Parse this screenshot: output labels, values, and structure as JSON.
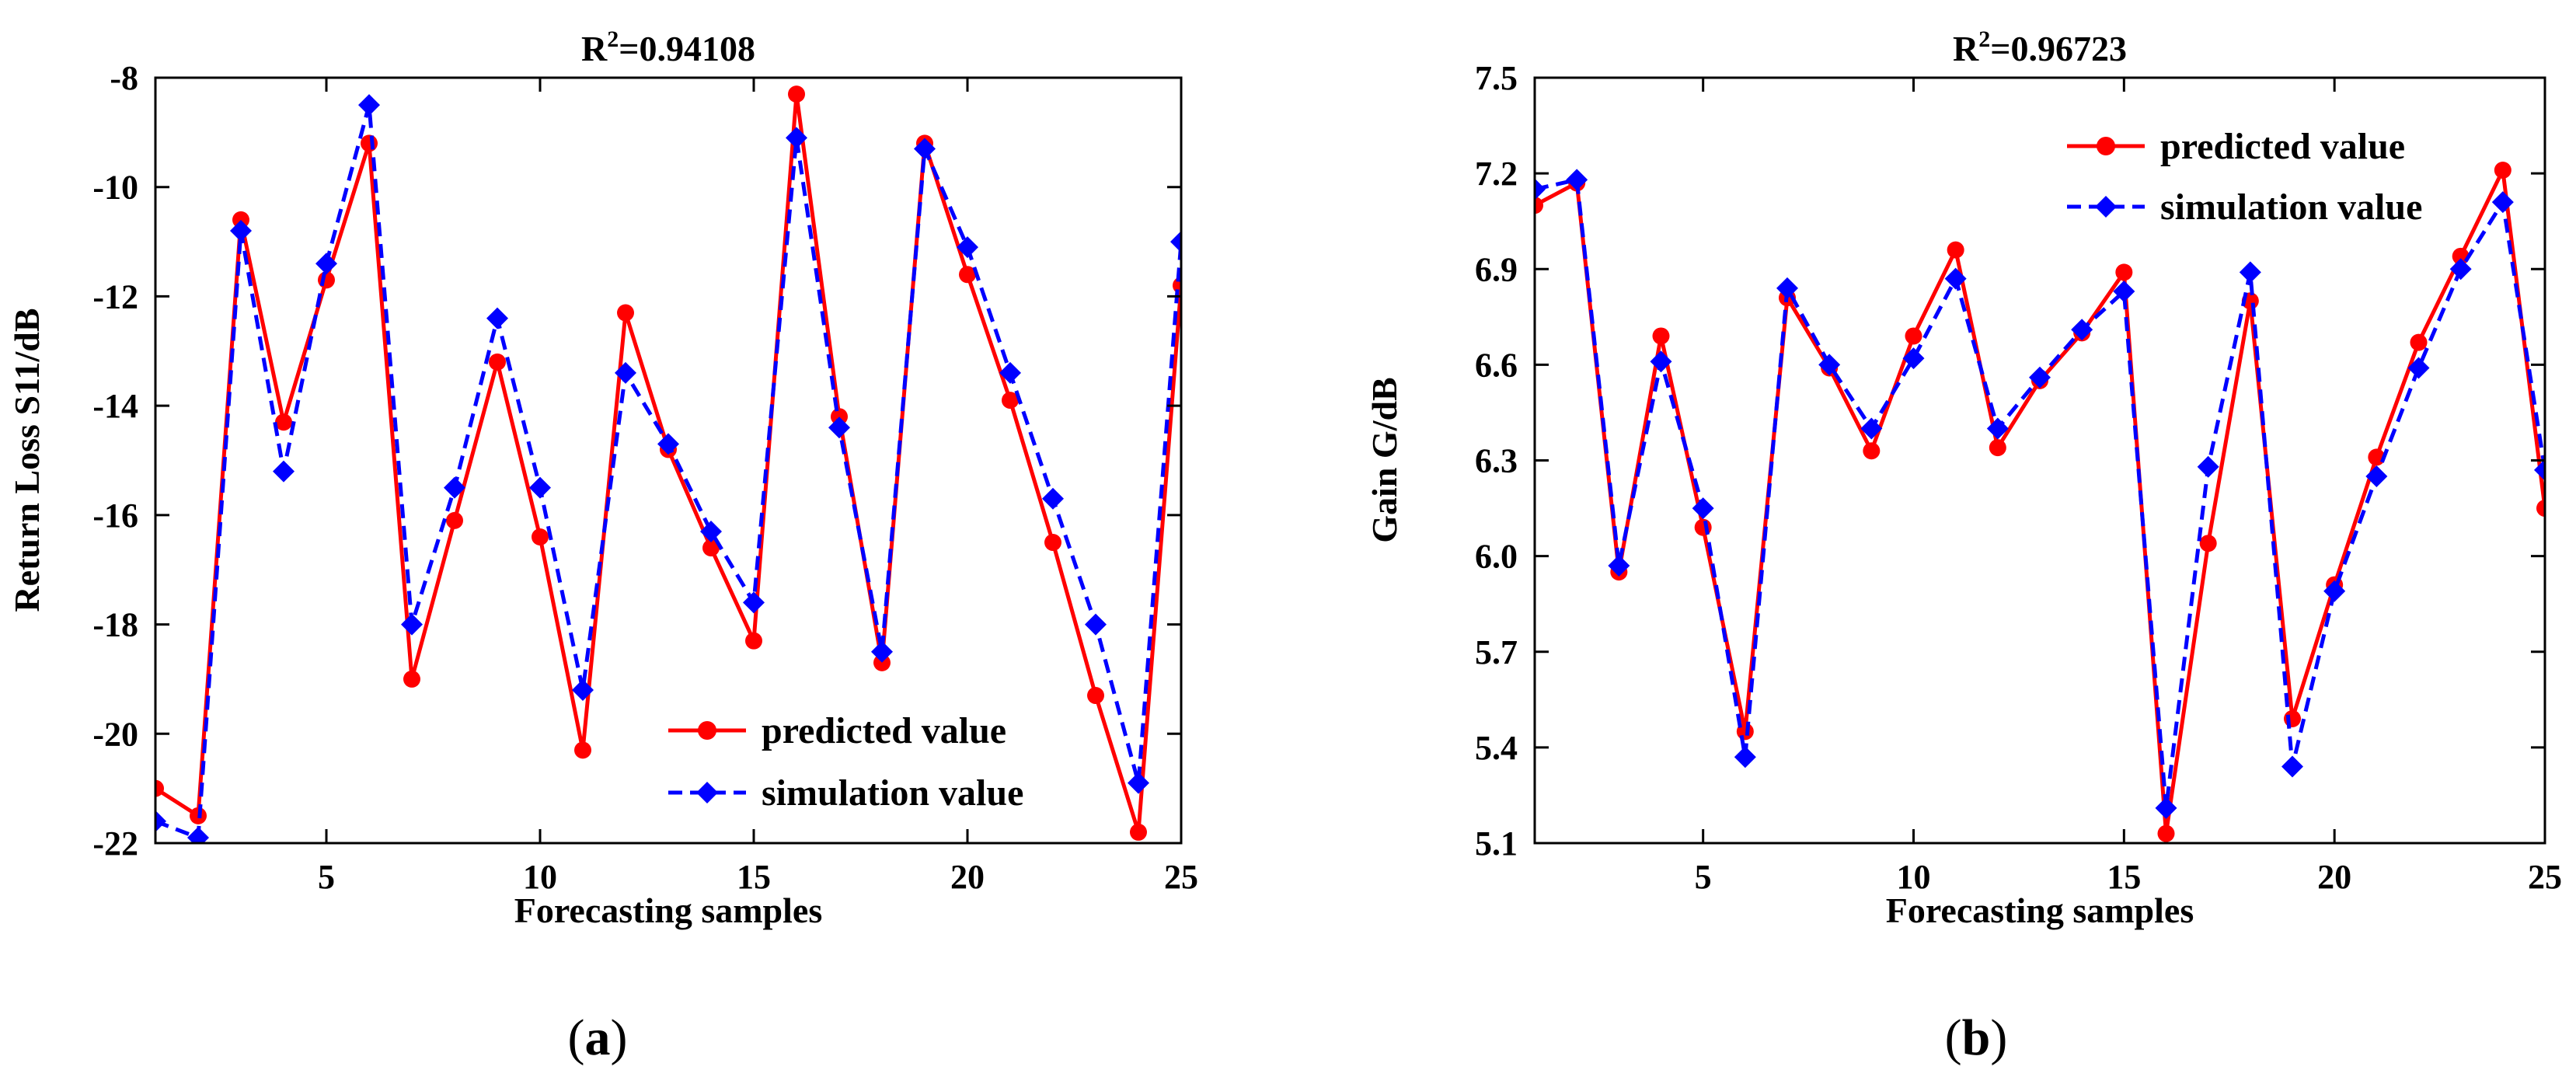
{
  "chart_data": [
    {
      "type": "line",
      "title": "R²=0.94108",
      "title_base": "R",
      "title_sup": "2",
      "title_rest": "=0.94108",
      "xlabel": "Forecasting samples",
      "ylabel": "Return Loss S11/dB",
      "panel_label": "(a)",
      "panel_letter": "a",
      "xlim": [
        1,
        25
      ],
      "ylim": [
        -22,
        -8
      ],
      "xticks": [
        5,
        10,
        15,
        20,
        25
      ],
      "xtick_labels": [
        "5",
        "10",
        "15",
        "20",
        "25"
      ],
      "yticks": [
        -22,
        -20,
        -18,
        -16,
        -14,
        -12,
        -10,
        -8
      ],
      "ytick_labels": [
        "-22",
        "-20",
        "-18",
        "-16",
        "-14",
        "-12",
        "-10",
        "-8"
      ],
      "legend_position": "lower-right",
      "x": [
        1,
        2,
        3,
        4,
        5,
        6,
        7,
        8,
        9,
        10,
        11,
        12,
        13,
        14,
        15,
        16,
        17,
        18,
        19,
        20,
        21,
        22,
        23,
        24,
        25
      ],
      "series": [
        {
          "name": "predicted value",
          "color": "#ff0000",
          "style": "solid",
          "marker": "circle",
          "values": [
            -21.0,
            -21.5,
            -10.6,
            -14.3,
            -11.7,
            -9.2,
            -19.0,
            -16.1,
            -13.2,
            -16.4,
            -20.3,
            -12.3,
            -14.8,
            -16.6,
            -18.3,
            -8.3,
            -14.2,
            -18.7,
            -9.2,
            -11.6,
            -13.9,
            -16.5,
            -19.3,
            -21.8,
            -11.8
          ]
        },
        {
          "name": "simulation value",
          "color": "#0000ff",
          "style": "dashed",
          "marker": "diamond",
          "values": [
            -21.6,
            -21.9,
            -10.8,
            -15.2,
            -11.4,
            -8.5,
            -18.0,
            -15.5,
            -12.4,
            -15.5,
            -19.2,
            -13.4,
            -14.7,
            -16.3,
            -17.6,
            -9.1,
            -14.4,
            -18.5,
            -9.3,
            -11.1,
            -13.4,
            -15.7,
            -18.0,
            -20.9,
            -11.0
          ]
        }
      ]
    },
    {
      "type": "line",
      "title": "R²=0.96723",
      "title_base": "R",
      "title_sup": "2",
      "title_rest": "=0.96723",
      "xlabel": "Forecasting samples",
      "ylabel": "Gain G/dB",
      "panel_label": "(b)",
      "panel_letter": "b",
      "xlim": [
        1,
        25
      ],
      "ylim": [
        5.1,
        7.5
      ],
      "xticks": [
        5,
        10,
        15,
        20,
        25
      ],
      "xtick_labels": [
        "5",
        "10",
        "15",
        "20",
        "25"
      ],
      "yticks": [
        5.1,
        5.4,
        5.7,
        6.0,
        6.3,
        6.6,
        6.9,
        7.2,
        7.5
      ],
      "ytick_labels": [
        "5.1",
        "5.4",
        "5.7",
        "6.0",
        "6.3",
        "6.6",
        "6.9",
        "7.2",
        "7.5"
      ],
      "legend_position": "top-right",
      "x": [
        1,
        2,
        3,
        4,
        5,
        6,
        7,
        8,
        9,
        10,
        11,
        12,
        13,
        14,
        15,
        16,
        17,
        18,
        19,
        20,
        21,
        22,
        23,
        24,
        25
      ],
      "series": [
        {
          "name": "predicted value",
          "color": "#ff0000",
          "style": "solid",
          "marker": "circle",
          "values": [
            7.1,
            7.17,
            5.95,
            6.69,
            6.09,
            5.45,
            6.81,
            6.59,
            6.33,
            6.69,
            6.96,
            6.34,
            6.55,
            6.7,
            6.89,
            5.13,
            6.04,
            6.8,
            5.49,
            5.91,
            6.31,
            6.67,
            6.94,
            7.21,
            6.15
          ]
        },
        {
          "name": "simulation value",
          "color": "#0000ff",
          "style": "dashed",
          "marker": "diamond",
          "values": [
            7.15,
            7.18,
            5.97,
            6.61,
            6.15,
            5.37,
            6.84,
            6.6,
            6.4,
            6.62,
            6.87,
            6.4,
            6.56,
            6.71,
            6.83,
            5.21,
            6.28,
            6.89,
            5.34,
            5.89,
            6.25,
            6.59,
            6.9,
            7.11,
            6.27
          ]
        }
      ]
    }
  ]
}
